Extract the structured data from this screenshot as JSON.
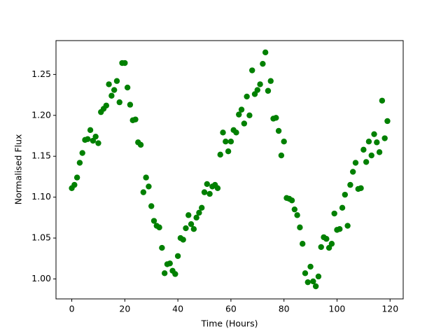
{
  "chart_data": {
    "type": "scatter",
    "x_label": "Time (Hours)",
    "y_label": "Normalised Flux",
    "color": "#008000",
    "x": [
      0,
      1,
      2,
      3,
      4,
      5,
      6,
      7,
      8,
      9,
      10,
      11,
      12,
      13,
      14,
      15,
      16,
      17,
      18,
      19,
      20,
      21,
      22,
      23,
      24,
      25,
      26,
      27,
      28,
      29,
      30,
      31,
      32,
      33,
      34,
      35,
      36,
      37,
      38,
      39,
      40,
      41,
      42,
      43,
      44,
      45,
      46,
      47,
      48,
      49,
      50,
      51,
      52,
      53,
      54,
      55,
      56,
      57,
      58,
      59,
      60,
      61,
      62,
      63,
      64,
      65,
      66,
      67,
      68,
      69,
      70,
      71,
      72,
      73,
      74,
      75,
      76,
      77,
      78,
      79,
      80,
      81,
      82,
      83,
      84,
      85,
      86,
      87,
      88,
      89,
      90,
      91,
      92,
      93,
      94,
      95,
      96,
      97,
      98,
      99,
      100,
      101,
      102,
      103,
      104,
      105,
      106,
      107,
      108,
      109,
      110,
      111,
      112,
      113,
      114,
      115,
      116,
      117,
      118,
      119
    ],
    "values": [
      1.111,
      1.115,
      1.124,
      1.142,
      1.154,
      1.17,
      1.171,
      1.182,
      1.169,
      1.174,
      1.166,
      1.204,
      1.208,
      1.212,
      1.238,
      1.224,
      1.231,
      1.242,
      1.216,
      1.264,
      1.264,
      1.234,
      1.213,
      1.194,
      1.195,
      1.167,
      1.164,
      1.106,
      1.124,
      1.113,
      1.089,
      1.071,
      1.065,
      1.063,
      1.038,
      1.007,
      1.018,
      1.019,
      1.01,
      1.006,
      1.028,
      1.05,
      1.048,
      1.062,
      1.078,
      1.067,
      1.061,
      1.075,
      1.081,
      1.087,
      1.106,
      1.116,
      1.104,
      1.113,
      1.115,
      1.111,
      1.152,
      1.179,
      1.168,
      1.156,
      1.168,
      1.182,
      1.179,
      1.201,
      1.207,
      1.19,
      1.223,
      1.2,
      1.255,
      1.226,
      1.231,
      1.238,
      1.263,
      1.277,
      1.23,
      1.242,
      1.196,
      1.197,
      1.181,
      1.151,
      1.168,
      1.099,
      1.098,
      1.096,
      1.085,
      1.078,
      1.063,
      1.043,
      1.007,
      0.996,
      1.015,
      0.997,
      0.991,
      1.003,
      1.039,
      1.051,
      1.049,
      1.038,
      1.043,
      1.08,
      1.06,
      1.061,
      1.087,
      1.103,
      1.065,
      1.115,
      1.131,
      1.142,
      1.11,
      1.111,
      1.158,
      1.143,
      1.168,
      1.151,
      1.177,
      1.167,
      1.155,
      1.218,
      1.172,
      1.193
    ],
    "xlim": [
      -5.95,
      124.95
    ],
    "xticks": [
      0,
      20,
      40,
      60,
      80,
      100,
      120
    ],
    "ylim": [
      0.9756,
      1.2914
    ],
    "yticks": [
      {
        "value": 1.0,
        "label": "1.00"
      },
      {
        "value": 1.05,
        "label": "1.05"
      },
      {
        "value": 1.1,
        "label": "1.10"
      },
      {
        "value": 1.15,
        "label": "1.15"
      },
      {
        "value": 1.2,
        "label": "1.20"
      },
      {
        "value": 1.25,
        "label": "1.25"
      }
    ],
    "grid": false
  }
}
